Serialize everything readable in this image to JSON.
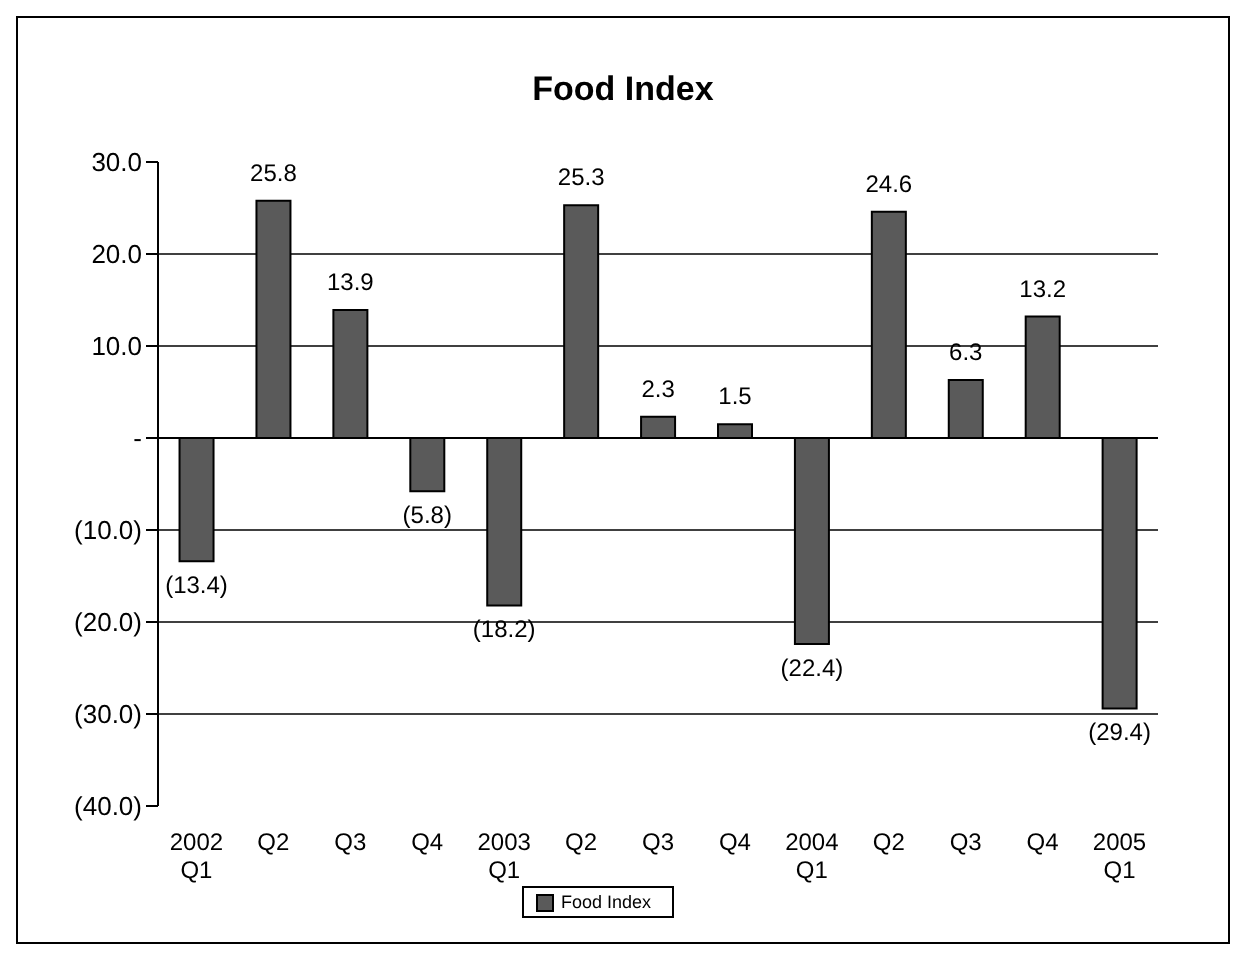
{
  "chart_data": {
    "type": "bar",
    "title": "Food Index",
    "categories": [
      "2002\nQ1",
      "Q2",
      "Q3",
      "Q4",
      "2003\nQ1",
      "Q2",
      "Q3",
      "Q4",
      "2004\nQ1",
      "Q2",
      "Q3",
      "Q4",
      "2005\nQ1"
    ],
    "series": [
      {
        "name": "Food Index",
        "color": "#5a5a5a",
        "values": [
          -13.4,
          25.8,
          13.9,
          -5.8,
          -18.2,
          25.3,
          2.3,
          1.5,
          -22.4,
          24.6,
          6.3,
          13.2,
          -29.4
        ],
        "value_labels": [
          "(13.4)",
          "25.8",
          "13.9",
          "(5.8)",
          "(18.2)",
          "25.3",
          "2.3",
          "1.5",
          "(22.4)",
          "24.6",
          "6.3",
          "13.2",
          "(29.4)"
        ]
      }
    ],
    "ylim": [
      -40,
      30
    ],
    "yticks": [
      {
        "value": 30,
        "label": "30.0"
      },
      {
        "value": 20,
        "label": "20.0"
      },
      {
        "value": 10,
        "label": "10.0"
      },
      {
        "value": 0,
        "label": "-"
      },
      {
        "value": -10,
        "label": "(10.0)"
      },
      {
        "value": -20,
        "label": "(20.0)"
      },
      {
        "value": -30,
        "label": "(30.0)"
      },
      {
        "value": -40,
        "label": "(40.0)"
      }
    ],
    "grid": "y",
    "legend": "bottom"
  }
}
